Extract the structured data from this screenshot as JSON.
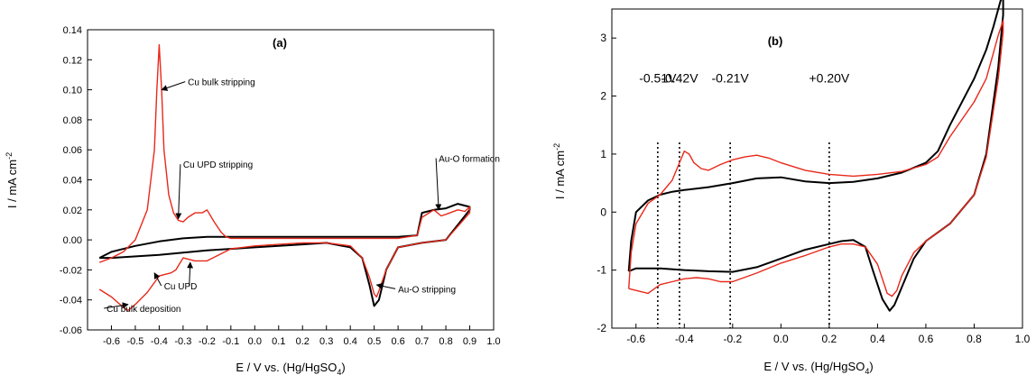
{
  "chart_data": [
    {
      "panel": "(a)",
      "type": "line",
      "xlabel": "E / V vs. (Hg/HgSO",
      "xlabel_sub": "4",
      "xlabel_end": ")",
      "ylabel": "I / mA cm",
      "ylabel_sup": "-2",
      "xlim": [
        -0.7,
        1.0
      ],
      "ylim": [
        -0.06,
        0.14
      ],
      "xticks": [
        -0.6,
        -0.5,
        -0.4,
        -0.3,
        -0.2,
        -0.1,
        0.0,
        0.1,
        0.2,
        0.3,
        0.4,
        0.5,
        0.6,
        0.7,
        0.8,
        0.9,
        1.0
      ],
      "xtick_labels": [
        "-0.6",
        "-0.5",
        "-0.4",
        "-0.3",
        "-0.2",
        "-0.1",
        "0.0",
        "0.1",
        "0.2",
        "0.3",
        "0.4",
        "0.5",
        "0.6",
        "0.7",
        "0.8",
        "0.9",
        "1.0"
      ],
      "yticks": [
        -0.06,
        -0.04,
        -0.02,
        0.0,
        0.02,
        0.04,
        0.06,
        0.08,
        0.1,
        0.12,
        0.14
      ],
      "ytick_labels": [
        "-0.06",
        "-0.04",
        "-0.02",
        "0.00",
        "0.02",
        "0.04",
        "0.06",
        "0.08",
        "0.10",
        "0.12",
        "0.14"
      ],
      "series": [
        {
          "color": "#000000",
          "x": [
            -0.65,
            -0.6,
            -0.5,
            -0.4,
            -0.3,
            -0.2,
            -0.1,
            0.0,
            0.2,
            0.4,
            0.6,
            0.68,
            0.7,
            0.75,
            0.8,
            0.85,
            0.9,
            0.9,
            0.8,
            0.7,
            0.6,
            0.55,
            0.52,
            0.5,
            0.48,
            0.45,
            0.4,
            0.3,
            0.2,
            0.1,
            0.0,
            -0.2,
            -0.4,
            -0.6,
            -0.65
          ],
          "y": [
            -0.012,
            -0.008,
            -0.004,
            -0.001,
            0.001,
            0.002,
            0.002,
            0.002,
            0.002,
            0.002,
            0.002,
            0.003,
            0.018,
            0.02,
            0.021,
            0.024,
            0.022,
            0.02,
            0.0,
            -0.002,
            -0.005,
            -0.02,
            -0.04,
            -0.044,
            -0.03,
            -0.012,
            -0.005,
            -0.002,
            -0.003,
            -0.004,
            -0.005,
            -0.007,
            -0.01,
            -0.012,
            -0.012
          ]
        },
        {
          "color": "#e8281a",
          "x": [
            -0.65,
            -0.6,
            -0.55,
            -0.5,
            -0.45,
            -0.42,
            -0.41,
            -0.4,
            -0.39,
            -0.38,
            -0.36,
            -0.34,
            -0.32,
            -0.3,
            -0.28,
            -0.25,
            -0.22,
            -0.2,
            -0.17,
            -0.14,
            -0.12,
            -0.1,
            0.0,
            0.2,
            0.4,
            0.6,
            0.68,
            0.7,
            0.73,
            0.75,
            0.78,
            0.8,
            0.85,
            0.88,
            0.9,
            0.9,
            0.8,
            0.7,
            0.6,
            0.55,
            0.52,
            0.51,
            0.5,
            0.48,
            0.45,
            0.4,
            0.3,
            0.2,
            0.1,
            0.0,
            -0.1,
            -0.15,
            -0.2,
            -0.25,
            -0.3,
            -0.33,
            -0.35,
            -0.4,
            -0.45,
            -0.5,
            -0.53,
            -0.55,
            -0.6,
            -0.65
          ],
          "y": [
            -0.015,
            -0.012,
            -0.008,
            0.0,
            0.02,
            0.06,
            0.1,
            0.13,
            0.1,
            0.06,
            0.03,
            0.018,
            0.013,
            0.012,
            0.015,
            0.018,
            0.018,
            0.02,
            0.012,
            0.005,
            0.002,
            0.001,
            0.001,
            0.001,
            0.001,
            0.001,
            0.003,
            0.015,
            0.018,
            0.02,
            0.016,
            0.017,
            0.02,
            0.019,
            0.022,
            0.018,
            0.0,
            -0.002,
            -0.005,
            -0.02,
            -0.034,
            -0.038,
            -0.036,
            -0.025,
            -0.012,
            -0.004,
            -0.002,
            -0.002,
            -0.003,
            -0.004,
            -0.006,
            -0.01,
            -0.014,
            -0.014,
            -0.012,
            -0.02,
            -0.022,
            -0.024,
            -0.035,
            -0.043,
            -0.047,
            -0.045,
            -0.038,
            -0.033
          ]
        }
      ],
      "annotations": [
        {
          "text": "Cu bulk stripping",
          "x": -0.28,
          "y": 0.103,
          "ax": -0.39,
          "ay": 0.1
        },
        {
          "text": "Cu UPD stripping",
          "x": -0.3,
          "y": 0.048,
          "ax": -0.32,
          "ay": 0.014
        },
        {
          "text": "Au-O formation",
          "x": 0.77,
          "y": 0.052,
          "ax": 0.77,
          "ay": 0.02
        },
        {
          "text": "Cu UPD",
          "x": -0.38,
          "y": -0.033,
          "ax": -0.42,
          "ay": -0.022,
          "bx": -0.27,
          "by": -0.015
        },
        {
          "text": "Cu bulk deposition",
          "x": -0.62,
          "y": -0.048,
          "ax": -0.53,
          "ay": -0.043
        },
        {
          "text": "Au-O stripping",
          "x": 0.6,
          "y": -0.035,
          "ax": 0.51,
          "ay": -0.03
        }
      ]
    },
    {
      "panel": "(b)",
      "type": "line",
      "xlabel": "E / V vs. (Hg/HgSO",
      "xlabel_sub": "4",
      "xlabel_end": ")",
      "ylabel": "I / mA cm",
      "ylabel_sup": "-2",
      "xlim": [
        -0.7,
        1.0
      ],
      "ylim": [
        -2.0,
        3.5
      ],
      "xticks": [
        -0.6,
        -0.4,
        -0.2,
        0.0,
        0.2,
        0.4,
        0.6,
        0.8,
        1.0
      ],
      "xtick_labels": [
        "-0.6",
        "-0.4",
        "-0.2",
        "0.0",
        "0.2",
        "0.4",
        "0.6",
        "0.8",
        "1.0"
      ],
      "yticks": [
        -2,
        -1,
        0,
        1,
        2,
        3
      ],
      "ytick_labels": [
        "-2",
        "-1",
        "0",
        "1",
        "2",
        "3"
      ],
      "vlines": [
        {
          "x": -0.51,
          "label": "-0.51V"
        },
        {
          "x": -0.42,
          "label": "-0.42V"
        },
        {
          "x": -0.21,
          "label": "-0.21V"
        },
        {
          "x": 0.2,
          "label": "+0.20V"
        }
      ],
      "series": [
        {
          "color": "#000000",
          "x": [
            -0.63,
            -0.62,
            -0.6,
            -0.55,
            -0.5,
            -0.45,
            -0.4,
            -0.3,
            -0.2,
            -0.1,
            0.0,
            0.1,
            0.2,
            0.3,
            0.4,
            0.5,
            0.6,
            0.65,
            0.7,
            0.8,
            0.85,
            0.88,
            0.9,
            0.91,
            0.92,
            0.92,
            0.9,
            0.85,
            0.8,
            0.7,
            0.6,
            0.55,
            0.5,
            0.47,
            0.45,
            0.42,
            0.38,
            0.35,
            0.3,
            0.25,
            0.2,
            0.1,
            0.0,
            -0.1,
            -0.2,
            -0.3,
            -0.4,
            -0.5,
            -0.6,
            -0.63
          ],
          "y": [
            -1.02,
            -0.5,
            0.0,
            0.2,
            0.3,
            0.35,
            0.38,
            0.43,
            0.5,
            0.58,
            0.6,
            0.53,
            0.5,
            0.52,
            0.58,
            0.68,
            0.85,
            1.05,
            1.5,
            2.3,
            2.8,
            3.2,
            3.5,
            3.65,
            3.7,
            3.4,
            2.5,
            1.0,
            0.3,
            -0.2,
            -0.5,
            -0.8,
            -1.3,
            -1.6,
            -1.7,
            -1.5,
            -1.0,
            -0.6,
            -0.48,
            -0.5,
            -0.55,
            -0.65,
            -0.8,
            -0.95,
            -1.03,
            -1.02,
            -1.0,
            -0.97,
            -0.97,
            -1.02
          ]
        },
        {
          "color": "#e8281a",
          "x": [
            -0.63,
            -0.62,
            -0.6,
            -0.55,
            -0.5,
            -0.45,
            -0.42,
            -0.4,
            -0.38,
            -0.36,
            -0.33,
            -0.3,
            -0.25,
            -0.2,
            -0.15,
            -0.1,
            -0.05,
            0.0,
            0.1,
            0.2,
            0.3,
            0.4,
            0.5,
            0.6,
            0.65,
            0.7,
            0.8,
            0.85,
            0.88,
            0.9,
            0.92,
            0.92,
            0.9,
            0.85,
            0.8,
            0.7,
            0.6,
            0.55,
            0.5,
            0.48,
            0.46,
            0.44,
            0.4,
            0.35,
            0.3,
            0.25,
            0.2,
            0.1,
            0.0,
            -0.1,
            -0.2,
            -0.25,
            -0.3,
            -0.35,
            -0.4,
            -0.45,
            -0.5,
            -0.55,
            -0.6,
            -0.63
          ],
          "y": [
            -1.32,
            -0.7,
            -0.2,
            0.15,
            0.3,
            0.55,
            0.85,
            1.05,
            1.0,
            0.85,
            0.75,
            0.72,
            0.82,
            0.9,
            0.95,
            0.98,
            0.93,
            0.85,
            0.72,
            0.65,
            0.62,
            0.65,
            0.7,
            0.82,
            0.95,
            1.3,
            1.9,
            2.3,
            2.75,
            3.05,
            3.3,
            3.1,
            2.3,
            0.95,
            0.3,
            -0.2,
            -0.5,
            -0.7,
            -1.1,
            -1.35,
            -1.45,
            -1.4,
            -0.9,
            -0.6,
            -0.55,
            -0.55,
            -0.6,
            -0.75,
            -0.88,
            -1.05,
            -1.2,
            -1.2,
            -1.15,
            -1.13,
            -1.15,
            -1.2,
            -1.25,
            -1.4,
            -1.35,
            -1.32
          ]
        }
      ]
    }
  ]
}
